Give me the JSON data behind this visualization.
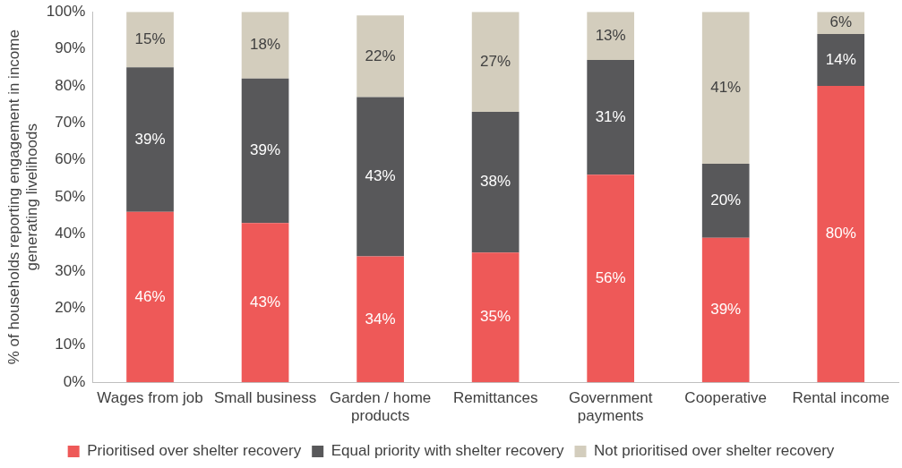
{
  "chart_data": {
    "type": "bar",
    "stacked": true,
    "ylabel": "% of households reporting engagement in income generating livelihoods",
    "categories": [
      "Wages from job",
      "Small business",
      "Garden / home products",
      "Remittances",
      "Government payments",
      "Cooperative",
      "Rental income"
    ],
    "series": [
      {
        "name": "Prioritised over shelter recovery",
        "color": "#ee5958",
        "values": [
          46,
          43,
          34,
          35,
          56,
          39,
          80
        ],
        "value_labels": [
          "46%",
          "43%",
          "34%",
          "35%",
          "56%",
          "39%",
          "80%"
        ]
      },
      {
        "name": "Equal priority with shelter recovery",
        "color": "#58585a",
        "values": [
          39,
          39,
          43,
          38,
          31,
          20,
          14
        ],
        "value_labels": [
          "39%",
          "39%",
          "43%",
          "38%",
          "31%",
          "20%",
          "14%"
        ]
      },
      {
        "name": "Not prioritised over shelter recovery",
        "color": "#d3cdbd",
        "values": [
          15,
          18,
          22,
          27,
          13,
          41,
          6
        ],
        "value_labels": [
          "15%",
          "18%",
          "22%",
          "27%",
          "13%",
          "41%",
          "6%"
        ]
      }
    ],
    "ylim": [
      0,
      100
    ],
    "yticks": [
      {
        "value": 0,
        "label": "0%"
      },
      {
        "value": 10,
        "label": "10%"
      },
      {
        "value": 20,
        "label": "20%"
      },
      {
        "value": 30,
        "label": "30%"
      },
      {
        "value": 40,
        "label": "40%"
      },
      {
        "value": 50,
        "label": "50%"
      },
      {
        "value": 60,
        "label": "60%"
      },
      {
        "value": 70,
        "label": "70%"
      },
      {
        "value": 80,
        "label": "80%"
      },
      {
        "value": 90,
        "label": "90%"
      },
      {
        "value": 100,
        "label": "100%"
      }
    ],
    "grid": false,
    "legend": "bottom"
  }
}
